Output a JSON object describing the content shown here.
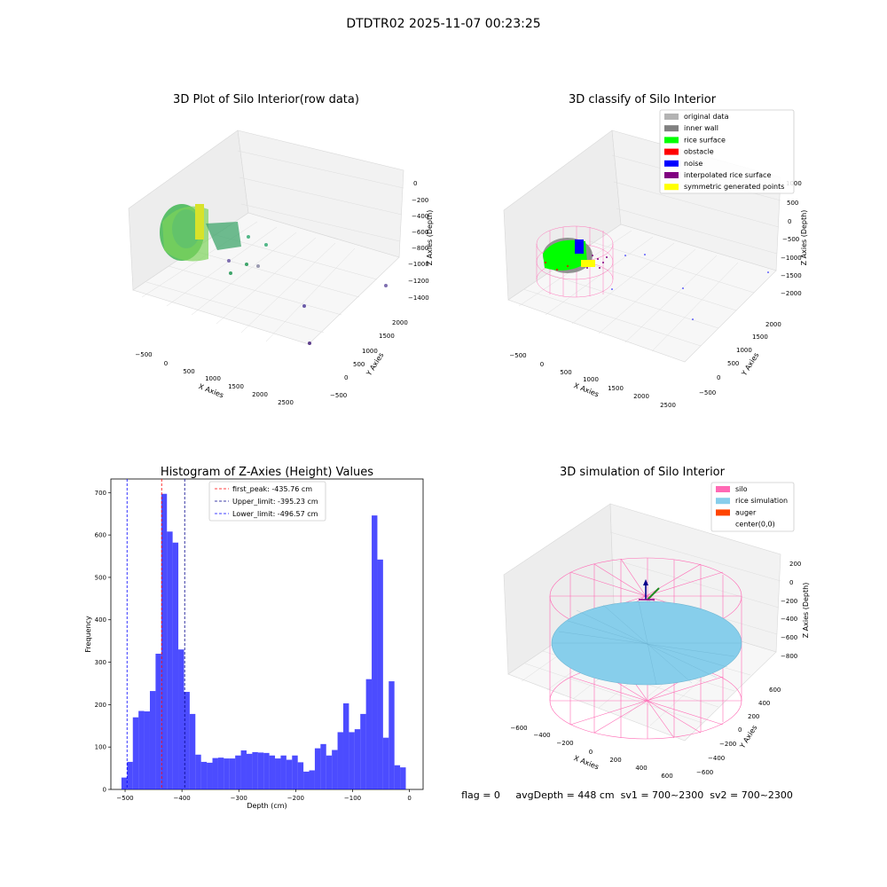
{
  "figure": {
    "suptitle": "DTDTR02 2025-11-07 00:23:25",
    "status_text": "flag = 0     avgDepth = 448 cm  sv1 = 700~2300  sv2 = 700~2300"
  },
  "panels": {
    "raw": {
      "title": "3D Plot of Silo Interior(row data)",
      "xlabel": "X Axies",
      "ylabel": "Y Axies",
      "zlabel": "Z Axies (Depth)",
      "xticks": [
        "−500",
        "0",
        "500",
        "1000",
        "1500",
        "2000",
        "2500"
      ],
      "yticks": [
        "−500",
        "0",
        "500",
        "1000",
        "1500",
        "2000"
      ],
      "zticks": [
        "0",
        "−200",
        "−400",
        "−600",
        "−800",
        "−1000",
        "−1200",
        "−1400"
      ]
    },
    "classify": {
      "title": "3D classify of Silo Interior",
      "xlabel": "X Axies",
      "ylabel": "Y Axies",
      "zlabel": "Z Axies (Depth)",
      "xticks": [
        "−500",
        "0",
        "500",
        "1000",
        "1500",
        "2000",
        "2500"
      ],
      "yticks": [
        "−500",
        "0",
        "500",
        "1000",
        "1500",
        "2000"
      ],
      "zticks": [
        "1000",
        "500",
        "0",
        "−500",
        "−1000",
        "−1500",
        "−2000"
      ],
      "legend": [
        {
          "label": "original data",
          "color": "#b3b3b3"
        },
        {
          "label": "inner wall",
          "color": "#808080"
        },
        {
          "label": "rice surface",
          "color": "#00ff00"
        },
        {
          "label": "obstacle",
          "color": "#ff0000"
        },
        {
          "label": "noise",
          "color": "#0000ff"
        },
        {
          "label": "interpolated rice surface",
          "color": "#800080"
        },
        {
          "label": "symmetric generated points",
          "color": "#ffff00"
        }
      ]
    },
    "simulation": {
      "title": "3D simulation of Silo Interior",
      "xlabel": "X Axies",
      "ylabel": "Y Axies",
      "zlabel": "Z Axies (Depth)",
      "xticks": [
        "−600",
        "−400",
        "−200",
        "0",
        "200",
        "400",
        "600"
      ],
      "yticks": [
        "−600",
        "−400",
        "−200",
        "0",
        "200",
        "400",
        "600"
      ],
      "zticks": [
        "200",
        "0",
        "−200",
        "−400",
        "−600",
        "−800"
      ],
      "legend": [
        {
          "label": "silo",
          "color": "#ff69b4"
        },
        {
          "label": "rice simulation",
          "color": "#87ceeb"
        },
        {
          "label": "auger",
          "color": "#ff4500"
        },
        {
          "label": "center(0,0)",
          "color": ""
        }
      ]
    }
  },
  "chart_data": {
    "type": "bar",
    "title": "Histogram of Z-Axies (Height) Values",
    "xlabel": "Depth (cm)",
    "ylabel": "Frequency",
    "xlim": [
      -525,
      24
    ],
    "ylim": [
      0,
      732
    ],
    "xticks": [
      -500,
      -400,
      -300,
      -200,
      -100,
      0
    ],
    "yticks": [
      0,
      100,
      200,
      300,
      400,
      500,
      600,
      700
    ],
    "bin_start": -506.4,
    "bin_width": 10,
    "values": [
      28,
      65,
      170,
      185,
      184,
      232,
      320,
      697,
      608,
      582,
      330,
      230,
      178,
      82,
      65,
      63,
      74,
      75,
      73,
      73,
      80,
      92,
      84,
      88,
      87,
      86,
      80,
      73,
      80,
      70,
      80,
      64,
      42,
      45,
      97,
      107,
      80,
      93,
      135,
      203,
      135,
      142,
      178,
      260,
      646,
      542,
      122,
      255,
      57,
      52
    ],
    "bar_color": "#0000ff",
    "vlines": [
      {
        "label": "first_peak: -435.76 cm",
        "x": -435.76,
        "color": "#ff0000"
      },
      {
        "label": "Upper_limit: -395.23 cm",
        "x": -395.23,
        "color": "#00008b"
      },
      {
        "label": "Lower_limit: -496.57 cm",
        "x": -496.57,
        "color": "#0000ff"
      }
    ],
    "legend_position": "top-center"
  }
}
